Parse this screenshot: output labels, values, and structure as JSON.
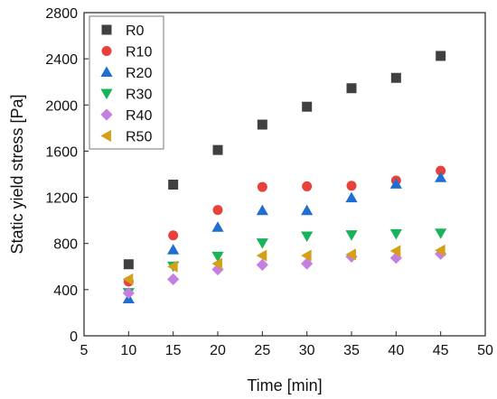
{
  "chart_data": {
    "type": "scatter",
    "xlabel": "Time [min]",
    "ylabel": "Static yield stress [Pa]",
    "xlim": [
      5,
      50
    ],
    "ylim": [
      0,
      2800
    ],
    "xticks": [
      5,
      10,
      15,
      20,
      25,
      30,
      35,
      40,
      45,
      50
    ],
    "yticks": [
      0,
      400,
      800,
      1200,
      1600,
      2000,
      2400,
      2800
    ],
    "grid": false,
    "legend_position": "top-left",
    "x": [
      10,
      15,
      20,
      25,
      30,
      35,
      40,
      45
    ],
    "series": [
      {
        "name": "R0",
        "marker": "square",
        "color": "#404040",
        "values": [
          620,
          1310,
          1610,
          1830,
          1985,
          2145,
          2235,
          2425
        ]
      },
      {
        "name": "R10",
        "marker": "circle",
        "color": "#e8413c",
        "values": [
          470,
          870,
          1090,
          1290,
          1295,
          1300,
          1345,
          1430
        ]
      },
      {
        "name": "R20",
        "marker": "triangle-up",
        "color": "#1f6fd1",
        "values": [
          320,
          745,
          940,
          1085,
          1085,
          1195,
          1315,
          1370
        ]
      },
      {
        "name": "R30",
        "marker": "triangle-down",
        "color": "#18b35a",
        "values": [
          375,
          605,
          690,
          805,
          865,
          875,
          885,
          890
        ]
      },
      {
        "name": "R40",
        "marker": "diamond",
        "color": "#c47fe0",
        "values": [
          370,
          490,
          575,
          615,
          625,
          685,
          675,
          710
        ]
      },
      {
        "name": "R50",
        "marker": "triangle-left",
        "color": "#d4a017",
        "values": [
          490,
          600,
          625,
          695,
          695,
          705,
          735,
          740
        ]
      }
    ]
  }
}
